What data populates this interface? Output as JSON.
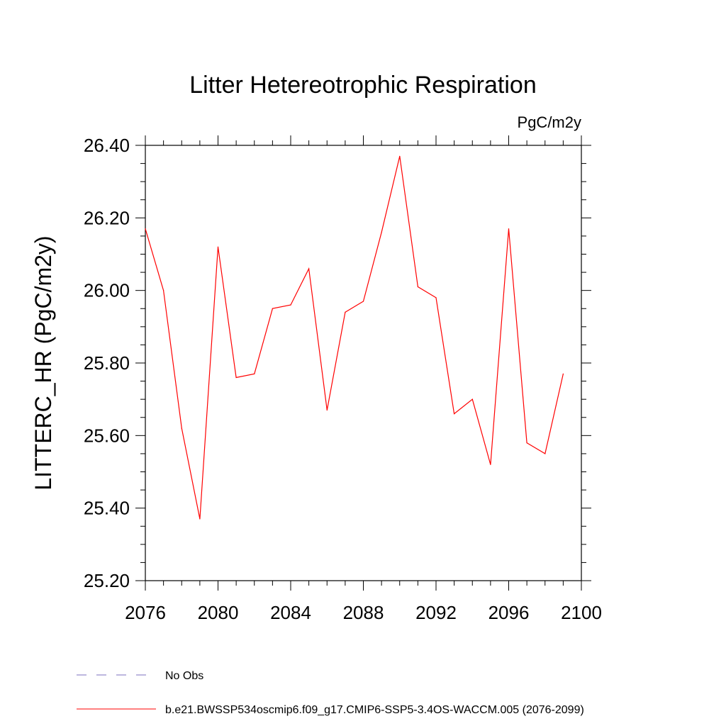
{
  "chart_data": {
    "type": "line",
    "title": "Litter Hetereotrophic Respiration",
    "units_label": "PgC/m2y",
    "ylabel": "LITTERC_HR  (PgC/m2y)",
    "xlabel": "",
    "xlim": [
      2076,
      2100
    ],
    "ylim": [
      25.2,
      26.4
    ],
    "x_ticks": [
      "2076",
      "2080",
      "2084",
      "2088",
      "2092",
      "2096",
      "2100"
    ],
    "y_ticks": [
      "25.20",
      "25.40",
      "25.60",
      "25.80",
      "26.00",
      "26.20",
      "26.40"
    ],
    "grid": false,
    "legend_position": "bottom-left",
    "series": [
      {
        "name": "b.e21.BWSSP534oscmip6.f09_g17.CMIP6-SSP5-3.4OS-WACCM.005 (2076-2099)",
        "color": "#ff0000",
        "x": [
          2076,
          2077,
          2078,
          2079,
          2080,
          2081,
          2082,
          2083,
          2084,
          2085,
          2086,
          2087,
          2088,
          2089,
          2090,
          2091,
          2092,
          2093,
          2094,
          2095,
          2096,
          2097,
          2098,
          2099
        ],
        "values": [
          26.17,
          26.0,
          25.62,
          25.37,
          26.12,
          25.76,
          25.77,
          25.95,
          25.96,
          26.06,
          25.67,
          25.94,
          25.97,
          26.16,
          26.37,
          26.01,
          25.98,
          25.66,
          25.7,
          25.52,
          26.17,
          25.58,
          25.55,
          25.77
        ]
      }
    ],
    "legend": [
      {
        "label": "No Obs",
        "style": "dashed",
        "color": "#7b6fbf"
      },
      {
        "label": "b.e21.BWSSP534oscmip6.f09_g17.CMIP6-SSP5-3.4OS-WACCM.005 (2076-2099)",
        "style": "solid",
        "color": "#ff0000"
      }
    ]
  }
}
